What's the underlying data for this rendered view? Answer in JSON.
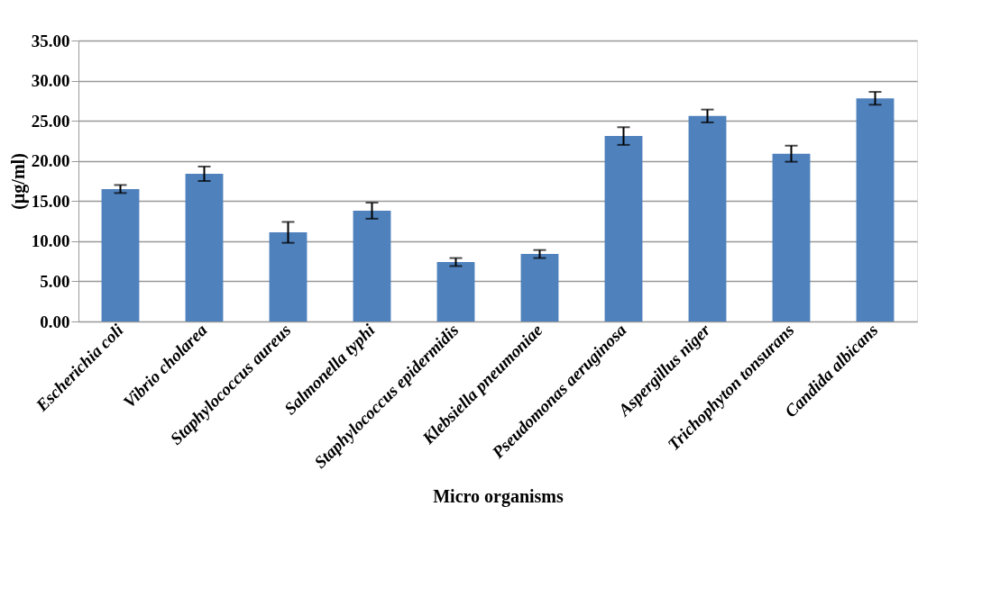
{
  "chart_data": {
    "type": "bar",
    "xlabel": "Micro organisms",
    "ylabel": "(µg/ml)",
    "categories": [
      "Escherichia coli",
      "Vibrio cholarea",
      "Staphylococcus aureus",
      "Salmonella typhi",
      "Staphylococcus epidermidis",
      "Klebsiella pneumoniae",
      "Pseudomonas aeruginosa",
      "Aspergillus niger",
      "Trichophyton tonsurans",
      "Candida albicans"
    ],
    "values": [
      16.5,
      18.4,
      11.1,
      13.8,
      7.4,
      8.4,
      23.1,
      25.6,
      20.9,
      27.8
    ],
    "errors": [
      0.5,
      0.9,
      1.3,
      1.0,
      0.5,
      0.5,
      1.1,
      0.8,
      1.0,
      0.8
    ],
    "color": "#4f81bd",
    "ylim": [
      0,
      35
    ],
    "yticks": [
      {
        "value": 0,
        "label": "0.00"
      },
      {
        "value": 5,
        "label": "5.00"
      },
      {
        "value": 10,
        "label": "10.00"
      },
      {
        "value": 15,
        "label": "15.00"
      },
      {
        "value": 20,
        "label": "20.00"
      },
      {
        "value": 25,
        "label": "25.00"
      },
      {
        "value": 30,
        "label": "30.00"
      },
      {
        "value": 35,
        "label": "35.00"
      }
    ],
    "grid": "y"
  }
}
